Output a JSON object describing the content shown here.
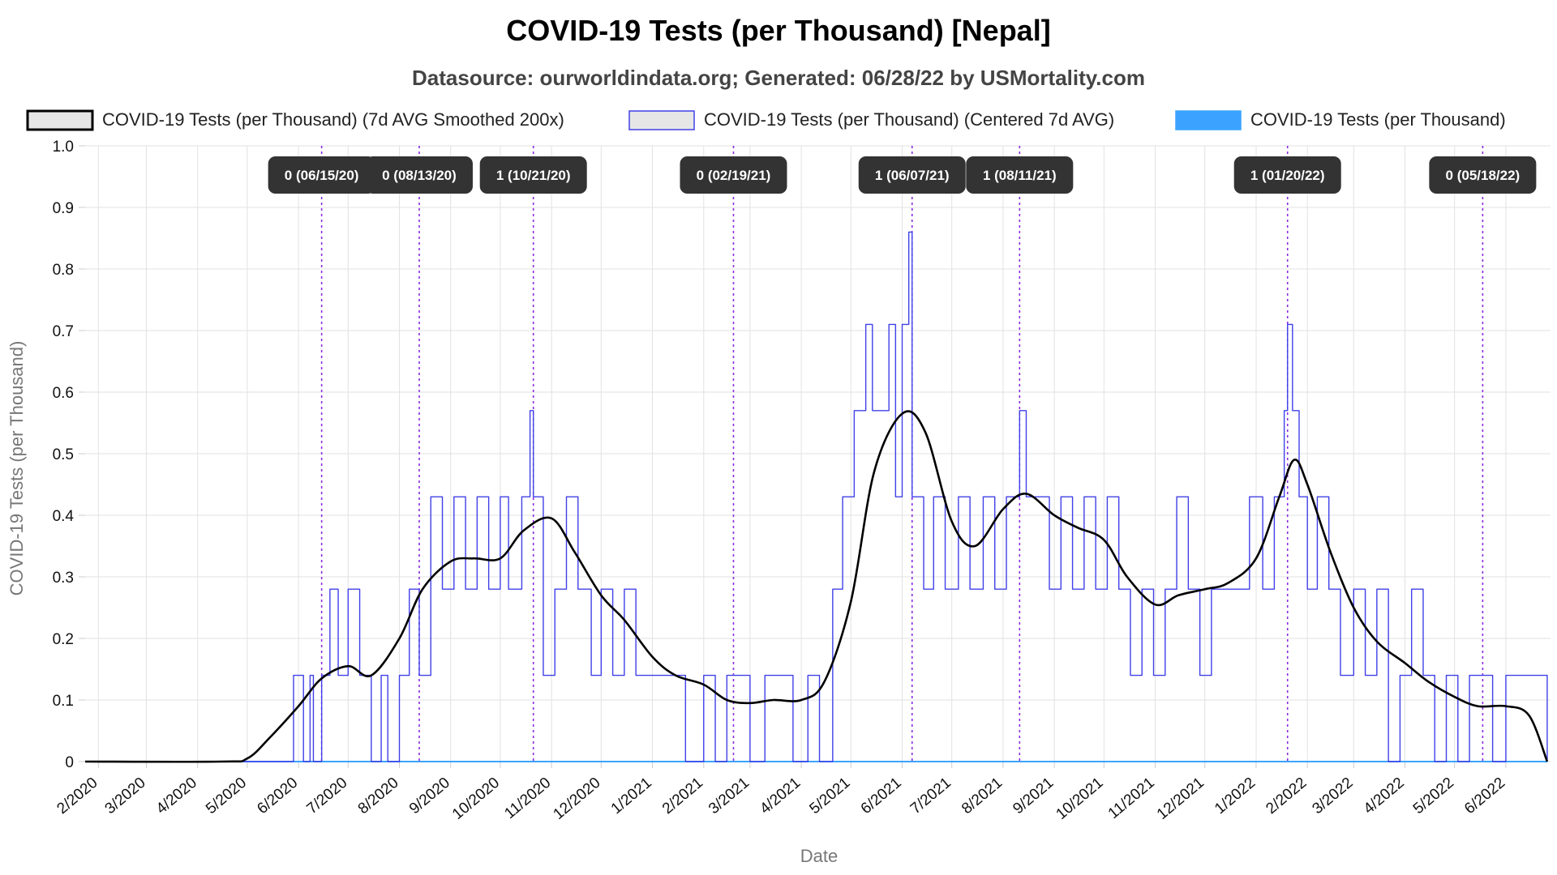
{
  "chart_data": {
    "type": "line",
    "title": "COVID-19 Tests (per Thousand) [Nepal]",
    "subtitle": "Datasource: ourworldindata.org; Generated: 06/28/22 by USMortality.com",
    "xlabel": "Date",
    "ylabel": "COVID-19 Tests (per Thousand)",
    "ylim": [
      0,
      1.0
    ],
    "xlim": [
      "2020-01-24",
      "2022-06-28"
    ],
    "y_ticks": [
      "0",
      "0.1",
      "0.2",
      "0.3",
      "0.4",
      "0.5",
      "0.6",
      "0.7",
      "0.8",
      "0.9",
      "1.0"
    ],
    "x_ticks": [
      {
        "date": "2020-02-01",
        "label": "2/2020"
      },
      {
        "date": "2020-03-01",
        "label": "3/2020"
      },
      {
        "date": "2020-04-01",
        "label": "4/2020"
      },
      {
        "date": "2020-05-01",
        "label": "5/2020"
      },
      {
        "date": "2020-06-01",
        "label": "6/2020"
      },
      {
        "date": "2020-07-01",
        "label": "7/2020"
      },
      {
        "date": "2020-08-01",
        "label": "8/2020"
      },
      {
        "date": "2020-09-01",
        "label": "9/2020"
      },
      {
        "date": "2020-10-01",
        "label": "10/2020"
      },
      {
        "date": "2020-11-01",
        "label": "11/2020"
      },
      {
        "date": "2020-12-01",
        "label": "12/2020"
      },
      {
        "date": "2021-01-01",
        "label": "1/2021"
      },
      {
        "date": "2021-02-01",
        "label": "2/2021"
      },
      {
        "date": "2021-03-01",
        "label": "3/2021"
      },
      {
        "date": "2021-04-01",
        "label": "4/2021"
      },
      {
        "date": "2021-05-01",
        "label": "5/2021"
      },
      {
        "date": "2021-06-01",
        "label": "6/2021"
      },
      {
        "date": "2021-07-01",
        "label": "7/2021"
      },
      {
        "date": "2021-08-01",
        "label": "8/2021"
      },
      {
        "date": "2021-09-01",
        "label": "9/2021"
      },
      {
        "date": "2021-10-01",
        "label": "10/2021"
      },
      {
        "date": "2021-11-01",
        "label": "11/2021"
      },
      {
        "date": "2021-12-01",
        "label": "12/2021"
      },
      {
        "date": "2022-01-01",
        "label": "1/2022"
      },
      {
        "date": "2022-02-01",
        "label": "2/2022"
      },
      {
        "date": "2022-03-01",
        "label": "3/2022"
      },
      {
        "date": "2022-04-01",
        "label": "4/2022"
      },
      {
        "date": "2022-05-01",
        "label": "5/2022"
      },
      {
        "date": "2022-06-01",
        "label": "6/2022"
      }
    ],
    "legend_placement": "top",
    "grid": true,
    "series": [
      {
        "name": "COVID-19 Tests (per Thousand) (7d AVG Smoothed 200x)",
        "color": "#000000",
        "style": "smooth",
        "x": [
          "2020-01-24",
          "2020-04-15",
          "2020-05-01",
          "2020-05-15",
          "2020-06-01",
          "2020-06-15",
          "2020-07-01",
          "2020-07-15",
          "2020-08-01",
          "2020-08-15",
          "2020-09-01",
          "2020-09-15",
          "2020-10-01",
          "2020-10-15",
          "2020-11-01",
          "2020-11-15",
          "2020-12-01",
          "2020-12-15",
          "2021-01-01",
          "2021-01-15",
          "2021-02-01",
          "2021-02-15",
          "2021-03-01",
          "2021-03-15",
          "2021-04-01",
          "2021-04-15",
          "2021-05-01",
          "2021-05-15",
          "2021-06-01",
          "2021-06-15",
          "2021-07-01",
          "2021-07-15",
          "2021-08-01",
          "2021-08-15",
          "2021-09-01",
          "2021-09-15",
          "2021-10-01",
          "2021-10-15",
          "2021-11-01",
          "2021-11-15",
          "2021-12-01",
          "2021-12-15",
          "2022-01-01",
          "2022-01-15",
          "2022-01-24",
          "2022-02-01",
          "2022-02-15",
          "2022-03-01",
          "2022-03-15",
          "2022-04-01",
          "2022-04-15",
          "2022-05-01",
          "2022-05-15",
          "2022-06-01",
          "2022-06-15",
          "2022-06-26"
        ],
        "y": [
          0,
          0,
          0.005,
          0.04,
          0.09,
          0.135,
          0.155,
          0.14,
          0.2,
          0.28,
          0.325,
          0.33,
          0.33,
          0.375,
          0.395,
          0.34,
          0.27,
          0.23,
          0.17,
          0.14,
          0.125,
          0.1,
          0.095,
          0.1,
          0.1,
          0.13,
          0.26,
          0.47,
          0.565,
          0.535,
          0.39,
          0.35,
          0.41,
          0.435,
          0.4,
          0.38,
          0.36,
          0.3,
          0.255,
          0.27,
          0.28,
          0.29,
          0.33,
          0.43,
          0.49,
          0.45,
          0.34,
          0.25,
          0.195,
          0.16,
          0.13,
          0.105,
          0.09,
          0.09,
          0.075,
          0
        ]
      },
      {
        "name": "COVID-19 Tests (per Thousand) (Centered 7d AVG)",
        "color": "#4040e8",
        "style": "step",
        "x": [
          "2020-01-24",
          "2020-05-29",
          "2020-06-04",
          "2020-06-08",
          "2020-06-10",
          "2020-06-15",
          "2020-06-20",
          "2020-06-25",
          "2020-07-01",
          "2020-07-08",
          "2020-07-15",
          "2020-07-21",
          "2020-07-25",
          "2020-08-01",
          "2020-08-07",
          "2020-08-13",
          "2020-08-20",
          "2020-08-27",
          "2020-09-03",
          "2020-09-10",
          "2020-09-17",
          "2020-09-24",
          "2020-10-01",
          "2020-10-06",
          "2020-10-14",
          "2020-10-19",
          "2020-10-21",
          "2020-10-23",
          "2020-10-27",
          "2020-11-03",
          "2020-11-10",
          "2020-11-17",
          "2020-11-25",
          "2020-12-01",
          "2020-12-08",
          "2020-12-15",
          "2020-12-22",
          "2021-01-01",
          "2021-01-14",
          "2021-01-21",
          "2021-02-01",
          "2021-02-08",
          "2021-02-15",
          "2021-02-22",
          "2021-03-01",
          "2021-03-10",
          "2021-03-20",
          "2021-03-27",
          "2021-04-05",
          "2021-04-12",
          "2021-04-20",
          "2021-04-26",
          "2021-05-03",
          "2021-05-10",
          "2021-05-14",
          "2021-05-18",
          "2021-05-24",
          "2021-05-28",
          "2021-06-01",
          "2021-06-05",
          "2021-06-07",
          "2021-06-09",
          "2021-06-14",
          "2021-06-20",
          "2021-06-27",
          "2021-07-05",
          "2021-07-12",
          "2021-07-20",
          "2021-07-27",
          "2021-08-03",
          "2021-08-11",
          "2021-08-15",
          "2021-08-22",
          "2021-08-29",
          "2021-09-05",
          "2021-09-12",
          "2021-09-19",
          "2021-09-26",
          "2021-10-03",
          "2021-10-10",
          "2021-10-17",
          "2021-10-24",
          "2021-10-31",
          "2021-11-07",
          "2021-11-14",
          "2021-11-21",
          "2021-11-28",
          "2021-12-05",
          "2021-12-12",
          "2021-12-20",
          "2021-12-28",
          "2022-01-05",
          "2022-01-12",
          "2022-01-18",
          "2022-01-20",
          "2022-01-23",
          "2022-01-27",
          "2022-02-01",
          "2022-02-07",
          "2022-02-14",
          "2022-02-21",
          "2022-03-01",
          "2022-03-08",
          "2022-03-15",
          "2022-03-22",
          "2022-03-29",
          "2022-04-05",
          "2022-04-12",
          "2022-04-19",
          "2022-04-26",
          "2022-05-03",
          "2022-05-10",
          "2022-05-17",
          "2022-05-24",
          "2022-06-01",
          "2022-06-08",
          "2022-06-15",
          "2022-06-21",
          "2022-06-26"
        ],
        "y": [
          0,
          0.14,
          0,
          0.14,
          0,
          0.14,
          0.28,
          0.14,
          0.28,
          0.14,
          0,
          0.14,
          0,
          0.14,
          0.28,
          0.14,
          0.43,
          0.28,
          0.43,
          0.28,
          0.43,
          0.28,
          0.43,
          0.28,
          0.43,
          0.57,
          0.43,
          0.43,
          0.14,
          0.28,
          0.43,
          0.28,
          0.14,
          0.28,
          0.14,
          0.28,
          0.14,
          0.14,
          0.14,
          0,
          0.14,
          0,
          0.14,
          0.14,
          0,
          0.14,
          0.14,
          0,
          0.14,
          0,
          0.28,
          0.43,
          0.57,
          0.71,
          0.57,
          0.57,
          0.71,
          0.43,
          0.71,
          0.86,
          0.43,
          0.43,
          0.28,
          0.43,
          0.28,
          0.43,
          0.28,
          0.43,
          0.28,
          0.43,
          0.57,
          0.43,
          0.43,
          0.28,
          0.43,
          0.28,
          0.43,
          0.28,
          0.43,
          0.28,
          0.14,
          0.28,
          0.14,
          0.28,
          0.43,
          0.28,
          0.14,
          0.28,
          0.28,
          0.28,
          0.43,
          0.28,
          0.43,
          0.57,
          0.71,
          0.57,
          0.43,
          0.28,
          0.43,
          0.28,
          0.14,
          0.28,
          0.14,
          0.28,
          0,
          0.14,
          0.28,
          0.14,
          0,
          0.14,
          0,
          0.14,
          0.14,
          0,
          0.14,
          0.14,
          0.14,
          0.14,
          0
        ]
      },
      {
        "name": "COVID-19 Tests (per Thousand)",
        "color": "#3ba3ff",
        "style": "line",
        "x": [
          "2020-01-24",
          "2022-06-26"
        ],
        "y": [
          0,
          0
        ]
      }
    ],
    "annotations": [
      {
        "date": "2020-06-15",
        "label": "0 (06/15/20)"
      },
      {
        "date": "2020-08-13",
        "label": "0 (08/13/20)"
      },
      {
        "date": "2020-10-21",
        "label": "1 (10/21/20)"
      },
      {
        "date": "2021-02-19",
        "label": "0 (02/19/21)"
      },
      {
        "date": "2021-06-07",
        "label": "1 (06/07/21)"
      },
      {
        "date": "2021-08-11",
        "label": "1 (08/11/21)"
      },
      {
        "date": "2022-01-20",
        "label": "1 (01/20/22)"
      },
      {
        "date": "2022-05-18",
        "label": "0 (05/18/22)"
      }
    ]
  }
}
